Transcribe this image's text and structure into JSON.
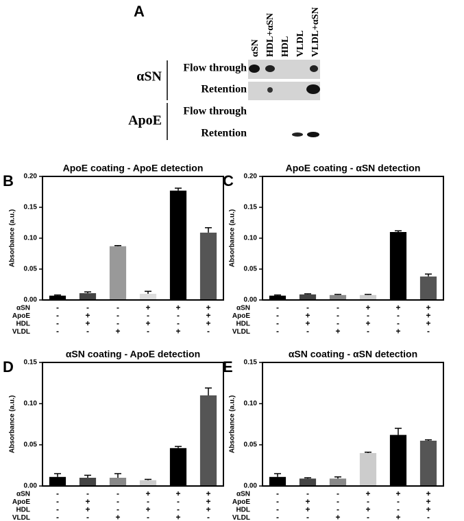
{
  "panel_a": {
    "letter": "A",
    "lanes": [
      "αSN",
      "HDL+αSN",
      "HDL",
      "VLDL",
      "VLDL+αSN"
    ],
    "groups": [
      {
        "name": "αSN",
        "rows": [
          "Flow through",
          "Retention"
        ]
      },
      {
        "name": "ApoE",
        "rows": [
          "Flow through",
          "Retention"
        ]
      }
    ]
  },
  "chart_data": [
    {
      "type": "bar",
      "letter": "B",
      "title": "ApoE coating - ApoE detection",
      "ylabel": "Absorbance (a.u.)",
      "conditions": [
        {
          "name": "αSN",
          "signs": [
            "-",
            "-",
            "-",
            "+",
            "+",
            "+"
          ]
        },
        {
          "name": "ApoE",
          "signs": [
            "-",
            "+",
            "-",
            "-",
            "-",
            "+"
          ]
        },
        {
          "name": "HDL",
          "signs": [
            "-",
            "+",
            "-",
            "+",
            "-",
            "+"
          ]
        },
        {
          "name": "VLDL",
          "signs": [
            "-",
            "-",
            "+",
            "-",
            "+",
            "-"
          ]
        }
      ],
      "values": [
        0.007,
        0.011,
        0.087,
        0.01,
        0.177,
        0.109
      ],
      "errors": [
        0.001,
        0.002,
        0.001,
        0.004,
        0.004,
        0.008
      ],
      "colors": [
        "#000000",
        "#444444",
        "#999999",
        "#dddddd",
        "#000000",
        "#555555"
      ],
      "ylim": [
        0,
        0.2
      ],
      "yticks": [
        {
          "value": 0,
          "label": "0.00"
        },
        {
          "value": 0.05,
          "label": "0.05"
        },
        {
          "value": 0.1,
          "label": "0.10"
        },
        {
          "value": 0.15,
          "label": "0.15"
        },
        {
          "value": 0.2,
          "label": "0.20"
        }
      ]
    },
    {
      "type": "bar",
      "letter": "C",
      "title": "ApoE coating - αSN detection",
      "ylabel": "Absorbance (a.u.)",
      "conditions": [
        {
          "name": "αSN",
          "signs": [
            "-",
            "-",
            "-",
            "+",
            "+",
            "+"
          ]
        },
        {
          "name": "ApoE",
          "signs": [
            "-",
            "+",
            "-",
            "-",
            "-",
            "+"
          ]
        },
        {
          "name": "HDL",
          "signs": [
            "-",
            "+",
            "-",
            "+",
            "-",
            "+"
          ]
        },
        {
          "name": "VLDL",
          "signs": [
            "-",
            "-",
            "+",
            "-",
            "+",
            "-"
          ]
        }
      ],
      "values": [
        0.007,
        0.009,
        0.008,
        0.008,
        0.11,
        0.038
      ],
      "errors": [
        0.001,
        0.001,
        0.001,
        0.001,
        0.002,
        0.004
      ],
      "colors": [
        "#000000",
        "#444444",
        "#888888",
        "#cccccc",
        "#000000",
        "#555555"
      ],
      "ylim": [
        0,
        0.2
      ],
      "yticks": [
        {
          "value": 0,
          "label": "0.00"
        },
        {
          "value": 0.05,
          "label": "0.05"
        },
        {
          "value": 0.1,
          "label": "0.10"
        },
        {
          "value": 0.15,
          "label": "0.15"
        },
        {
          "value": 0.2,
          "label": "0.20"
        }
      ]
    },
    {
      "type": "bar",
      "letter": "D",
      "title": "αSN coating - ApoE detection",
      "ylabel": "Absorbance (a.u.)",
      "conditions": [
        {
          "name": "αSN",
          "signs": [
            "-",
            "-",
            "-",
            "+",
            "+",
            "+"
          ]
        },
        {
          "name": "ApoE",
          "signs": [
            "-",
            "+",
            "-",
            "-",
            "-",
            "+"
          ]
        },
        {
          "name": "HDL",
          "signs": [
            "-",
            "+",
            "-",
            "+",
            "-",
            "+"
          ]
        },
        {
          "name": "VLDL",
          "signs": [
            "-",
            "-",
            "+",
            "-",
            "+",
            "-"
          ]
        }
      ],
      "values": [
        0.011,
        0.01,
        0.01,
        0.007,
        0.046,
        0.11
      ],
      "errors": [
        0.004,
        0.003,
        0.005,
        0.001,
        0.002,
        0.009
      ],
      "colors": [
        "#000000",
        "#444444",
        "#888888",
        "#cccccc",
        "#000000",
        "#555555"
      ],
      "ylim": [
        0,
        0.15
      ],
      "yticks": [
        {
          "value": 0,
          "label": "0.00"
        },
        {
          "value": 0.05,
          "label": "0.05"
        },
        {
          "value": 0.1,
          "label": "0.10"
        },
        {
          "value": 0.15,
          "label": "0.15"
        }
      ]
    },
    {
      "type": "bar",
      "letter": "E",
      "title": "αSN coating - αSN detection",
      "ylabel": "Absorbance (a.u.)",
      "conditions": [
        {
          "name": "αSN",
          "signs": [
            "-",
            "-",
            "-",
            "+",
            "+",
            "+"
          ]
        },
        {
          "name": "ApoE",
          "signs": [
            "-",
            "+",
            "-",
            "-",
            "-",
            "+"
          ]
        },
        {
          "name": "HDL",
          "signs": [
            "-",
            "+",
            "-",
            "+",
            "-",
            "+"
          ]
        },
        {
          "name": "VLDL",
          "signs": [
            "-",
            "-",
            "+",
            "-",
            "+",
            "-"
          ]
        }
      ],
      "values": [
        0.011,
        0.009,
        0.009,
        0.04,
        0.062,
        0.055
      ],
      "errors": [
        0.004,
        0.001,
        0.002,
        0.001,
        0.008,
        0.001
      ],
      "colors": [
        "#000000",
        "#444444",
        "#888888",
        "#cccccc",
        "#000000",
        "#555555"
      ],
      "ylim": [
        0,
        0.15
      ],
      "yticks": [
        {
          "value": 0,
          "label": "0.00"
        },
        {
          "value": 0.05,
          "label": "0.05"
        },
        {
          "value": 0.1,
          "label": "0.10"
        },
        {
          "value": 0.15,
          "label": "0.15"
        }
      ]
    }
  ]
}
